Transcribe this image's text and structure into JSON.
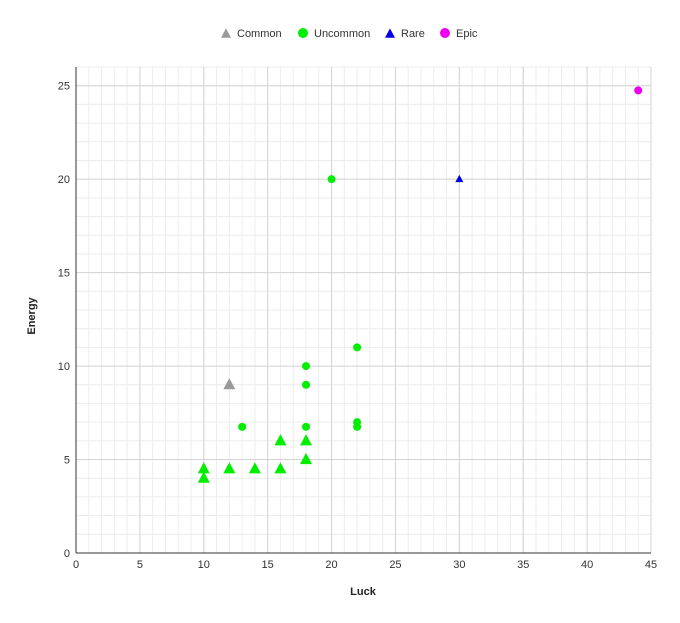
{
  "chart_data": {
    "type": "scatter",
    "xlabel": "Luck",
    "ylabel": "Energy",
    "xlim": [
      0,
      45
    ],
    "ylim": [
      0,
      26
    ],
    "x_ticks": [
      0,
      5,
      10,
      15,
      20,
      25,
      30,
      35,
      40,
      45
    ],
    "y_ticks": [
      0,
      5,
      10,
      15,
      20,
      25
    ],
    "x_minor_step": 1,
    "y_minor_step": 1,
    "grid": true,
    "legend_position": "top-center",
    "series": [
      {
        "name": "Common",
        "marker": "triangle",
        "color": "#999999",
        "points": [
          [
            12,
            9
          ]
        ]
      },
      {
        "name": "Uncommon",
        "marker": "mixed",
        "legend_marker": "circle",
        "color": "#00ee00",
        "points": [
          {
            "x": 10,
            "y": 4.5,
            "marker": "triangle"
          },
          {
            "x": 10,
            "y": 4.0,
            "marker": "triangle"
          },
          {
            "x": 12,
            "y": 4.5,
            "marker": "triangle"
          },
          {
            "x": 14,
            "y": 4.5,
            "marker": "triangle"
          },
          {
            "x": 16,
            "y": 4.5,
            "marker": "triangle"
          },
          {
            "x": 16,
            "y": 6.0,
            "marker": "triangle"
          },
          {
            "x": 18,
            "y": 5.0,
            "marker": "triangle"
          },
          {
            "x": 18,
            "y": 6.0,
            "marker": "triangle"
          },
          {
            "x": 13,
            "y": 6.75,
            "marker": "circle"
          },
          {
            "x": 18,
            "y": 6.75,
            "marker": "circle"
          },
          {
            "x": 18,
            "y": 9.0,
            "marker": "circle"
          },
          {
            "x": 18,
            "y": 10.0,
            "marker": "circle"
          },
          {
            "x": 22,
            "y": 6.75,
            "marker": "circle"
          },
          {
            "x": 22,
            "y": 7.0,
            "marker": "circle"
          },
          {
            "x": 22,
            "y": 11.0,
            "marker": "circle"
          },
          {
            "x": 20,
            "y": 20.0,
            "marker": "circle"
          }
        ]
      },
      {
        "name": "Rare",
        "marker": "triangle",
        "color": "#0000ee",
        "points": [
          [
            30,
            20
          ]
        ]
      },
      {
        "name": "Epic",
        "marker": "circle",
        "color": "#ee00ee",
        "points": [
          [
            44,
            24.75
          ]
        ]
      }
    ]
  }
}
